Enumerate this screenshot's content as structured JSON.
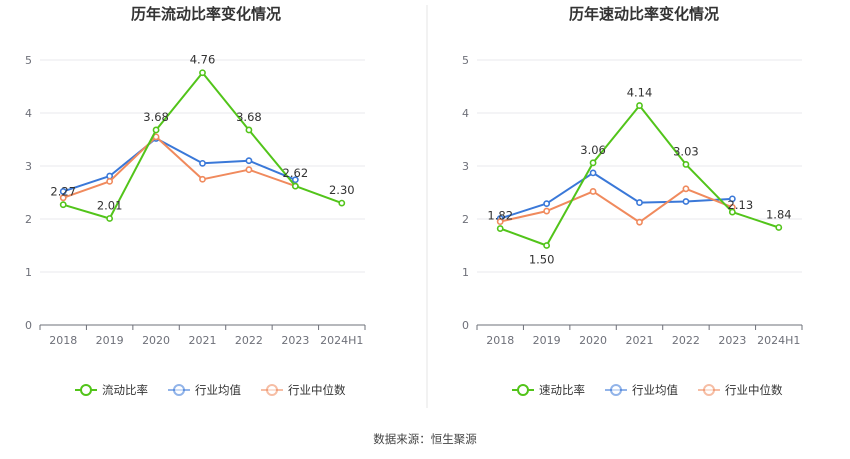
{
  "footer": "数据来源：恒生聚源",
  "colors": {
    "company": "#52c41a",
    "industry_avg": "#3a78d8",
    "industry_median": "#f08a5d"
  },
  "chart_data": [
    {
      "type": "line",
      "title": "历年流动比率变化情况",
      "categories": [
        "2018",
        "2019",
        "2020",
        "2021",
        "2022",
        "2023",
        "2024H1"
      ],
      "ylim": [
        0,
        5
      ],
      "yticks": [
        0,
        1,
        2,
        3,
        4,
        5
      ],
      "grid": true,
      "legend_position": "bottom",
      "series": [
        {
          "name": "流动比率",
          "color": "#52c41a",
          "values": [
            2.27,
            2.01,
            3.68,
            4.76,
            3.68,
            2.62,
            2.3
          ],
          "labels": [
            "2.27",
            "2.01",
            "3.68",
            "4.76",
            "3.68",
            "2.62",
            "2.30"
          ]
        },
        {
          "name": "行业均值",
          "color": "#3a78d8",
          "values": [
            2.52,
            2.81,
            3.52,
            3.05,
            3.1,
            2.74,
            null
          ]
        },
        {
          "name": "行业中位数",
          "color": "#f08a5d",
          "values": [
            2.4,
            2.71,
            3.55,
            2.75,
            2.93,
            2.62,
            null
          ]
        }
      ]
    },
    {
      "type": "line",
      "title": "历年速动比率变化情况",
      "categories": [
        "2018",
        "2019",
        "2020",
        "2021",
        "2022",
        "2023",
        "2024H1"
      ],
      "ylim": [
        0,
        5
      ],
      "yticks": [
        0,
        1,
        2,
        3,
        4,
        5
      ],
      "grid": true,
      "legend_position": "bottom",
      "series": [
        {
          "name": "速动比率",
          "color": "#52c41a",
          "values": [
            1.82,
            1.5,
            3.06,
            4.14,
            3.03,
            2.13,
            1.84
          ],
          "labels": [
            "1.82",
            "1.50",
            "3.06",
            "4.14",
            "3.03",
            "2.13",
            "1.84"
          ]
        },
        {
          "name": "行业均值",
          "color": "#3a78d8",
          "values": [
            2.01,
            2.29,
            2.87,
            2.31,
            2.33,
            2.38,
            null
          ]
        },
        {
          "name": "行业中位数",
          "color": "#f08a5d",
          "values": [
            1.95,
            2.15,
            2.52,
            1.94,
            2.57,
            2.22,
            null
          ]
        }
      ]
    }
  ]
}
